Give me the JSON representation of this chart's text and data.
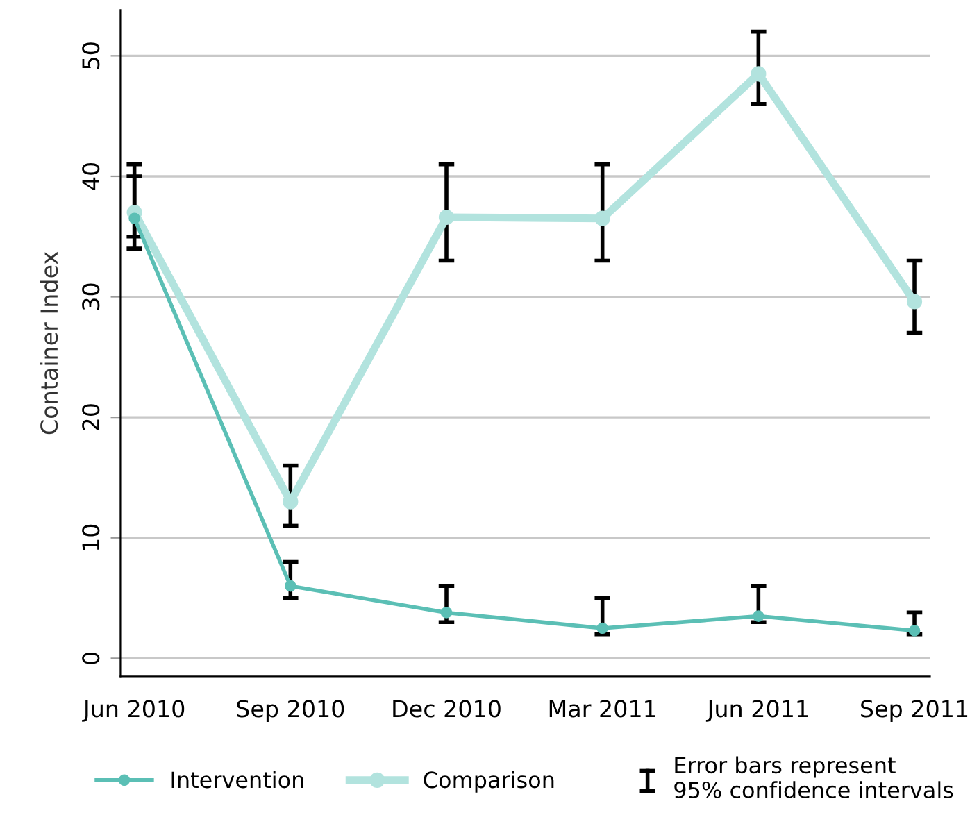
{
  "chart_data": {
    "type": "line",
    "ylabel": "Container Index",
    "categories": [
      "Jun 2010",
      "Sep 2010",
      "Dec 2010",
      "Mar 2011",
      "Jun 2011",
      "Sep 2011"
    ],
    "series": [
      {
        "name": "Intervention",
        "color": "#5bbfb5",
        "values": [
          36.5,
          6,
          3.8,
          2.5,
          3.5,
          2.3
        ],
        "errors": [
          [
            35,
            40
          ],
          [
            5,
            8
          ],
          [
            3,
            6
          ],
          [
            2,
            5
          ],
          [
            3,
            6
          ],
          [
            2,
            3.8
          ]
        ]
      },
      {
        "name": "Comparison",
        "color": "#b2e3de",
        "values": [
          37,
          13,
          36.6,
          36.5,
          48.5,
          29.6
        ],
        "errors": [
          [
            34,
            41
          ],
          [
            11,
            16
          ],
          [
            33,
            41
          ],
          [
            33,
            41
          ],
          [
            46,
            52
          ],
          [
            27,
            33
          ]
        ]
      }
    ],
    "ylim": [
      -1.5,
      53.8
    ],
    "yticks": [
      0,
      10,
      20,
      30,
      40,
      50
    ],
    "grid": "y",
    "legend": "bottom",
    "marker": "circle",
    "line_style": "solid",
    "annotations": [
      "Error bars represent\n95% confidence intervals"
    ]
  }
}
